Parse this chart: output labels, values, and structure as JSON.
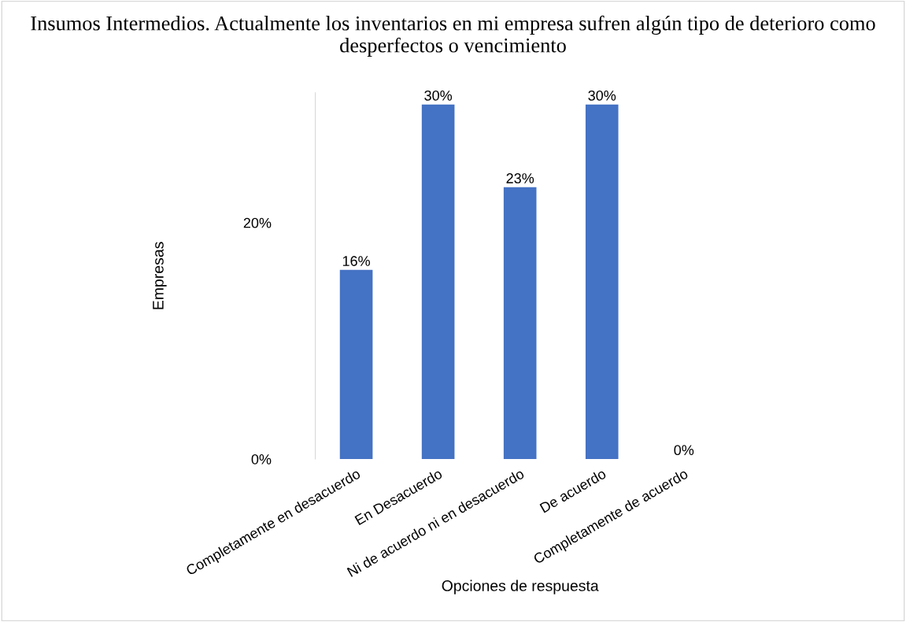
{
  "chart_data": {
    "type": "bar",
    "title": "Insumos Intermedios. Actualmente los inventarios en mi empresa sufren algún tipo de deterioro como desperfectos o vencimiento",
    "xlabel": "Opciones de respuesta",
    "ylabel": "Empresas",
    "categories": [
      "Completamente en desacuerdo",
      "En Desacuerdo",
      "Ni de acuerdo ni en desacuerdo",
      "De acuerdo",
      "Completamente de acuerdo"
    ],
    "values": [
      16,
      30,
      23,
      30,
      0
    ],
    "value_labels": [
      "16%",
      "30%",
      "23%",
      "30%",
      "0%"
    ],
    "color": "#4472c4",
    "ylim": [
      0,
      31
    ],
    "yticks": [
      {
        "value": 0,
        "label": "0%"
      },
      {
        "value": 20,
        "label": "20%"
      }
    ],
    "grid": false,
    "legend": false
  }
}
